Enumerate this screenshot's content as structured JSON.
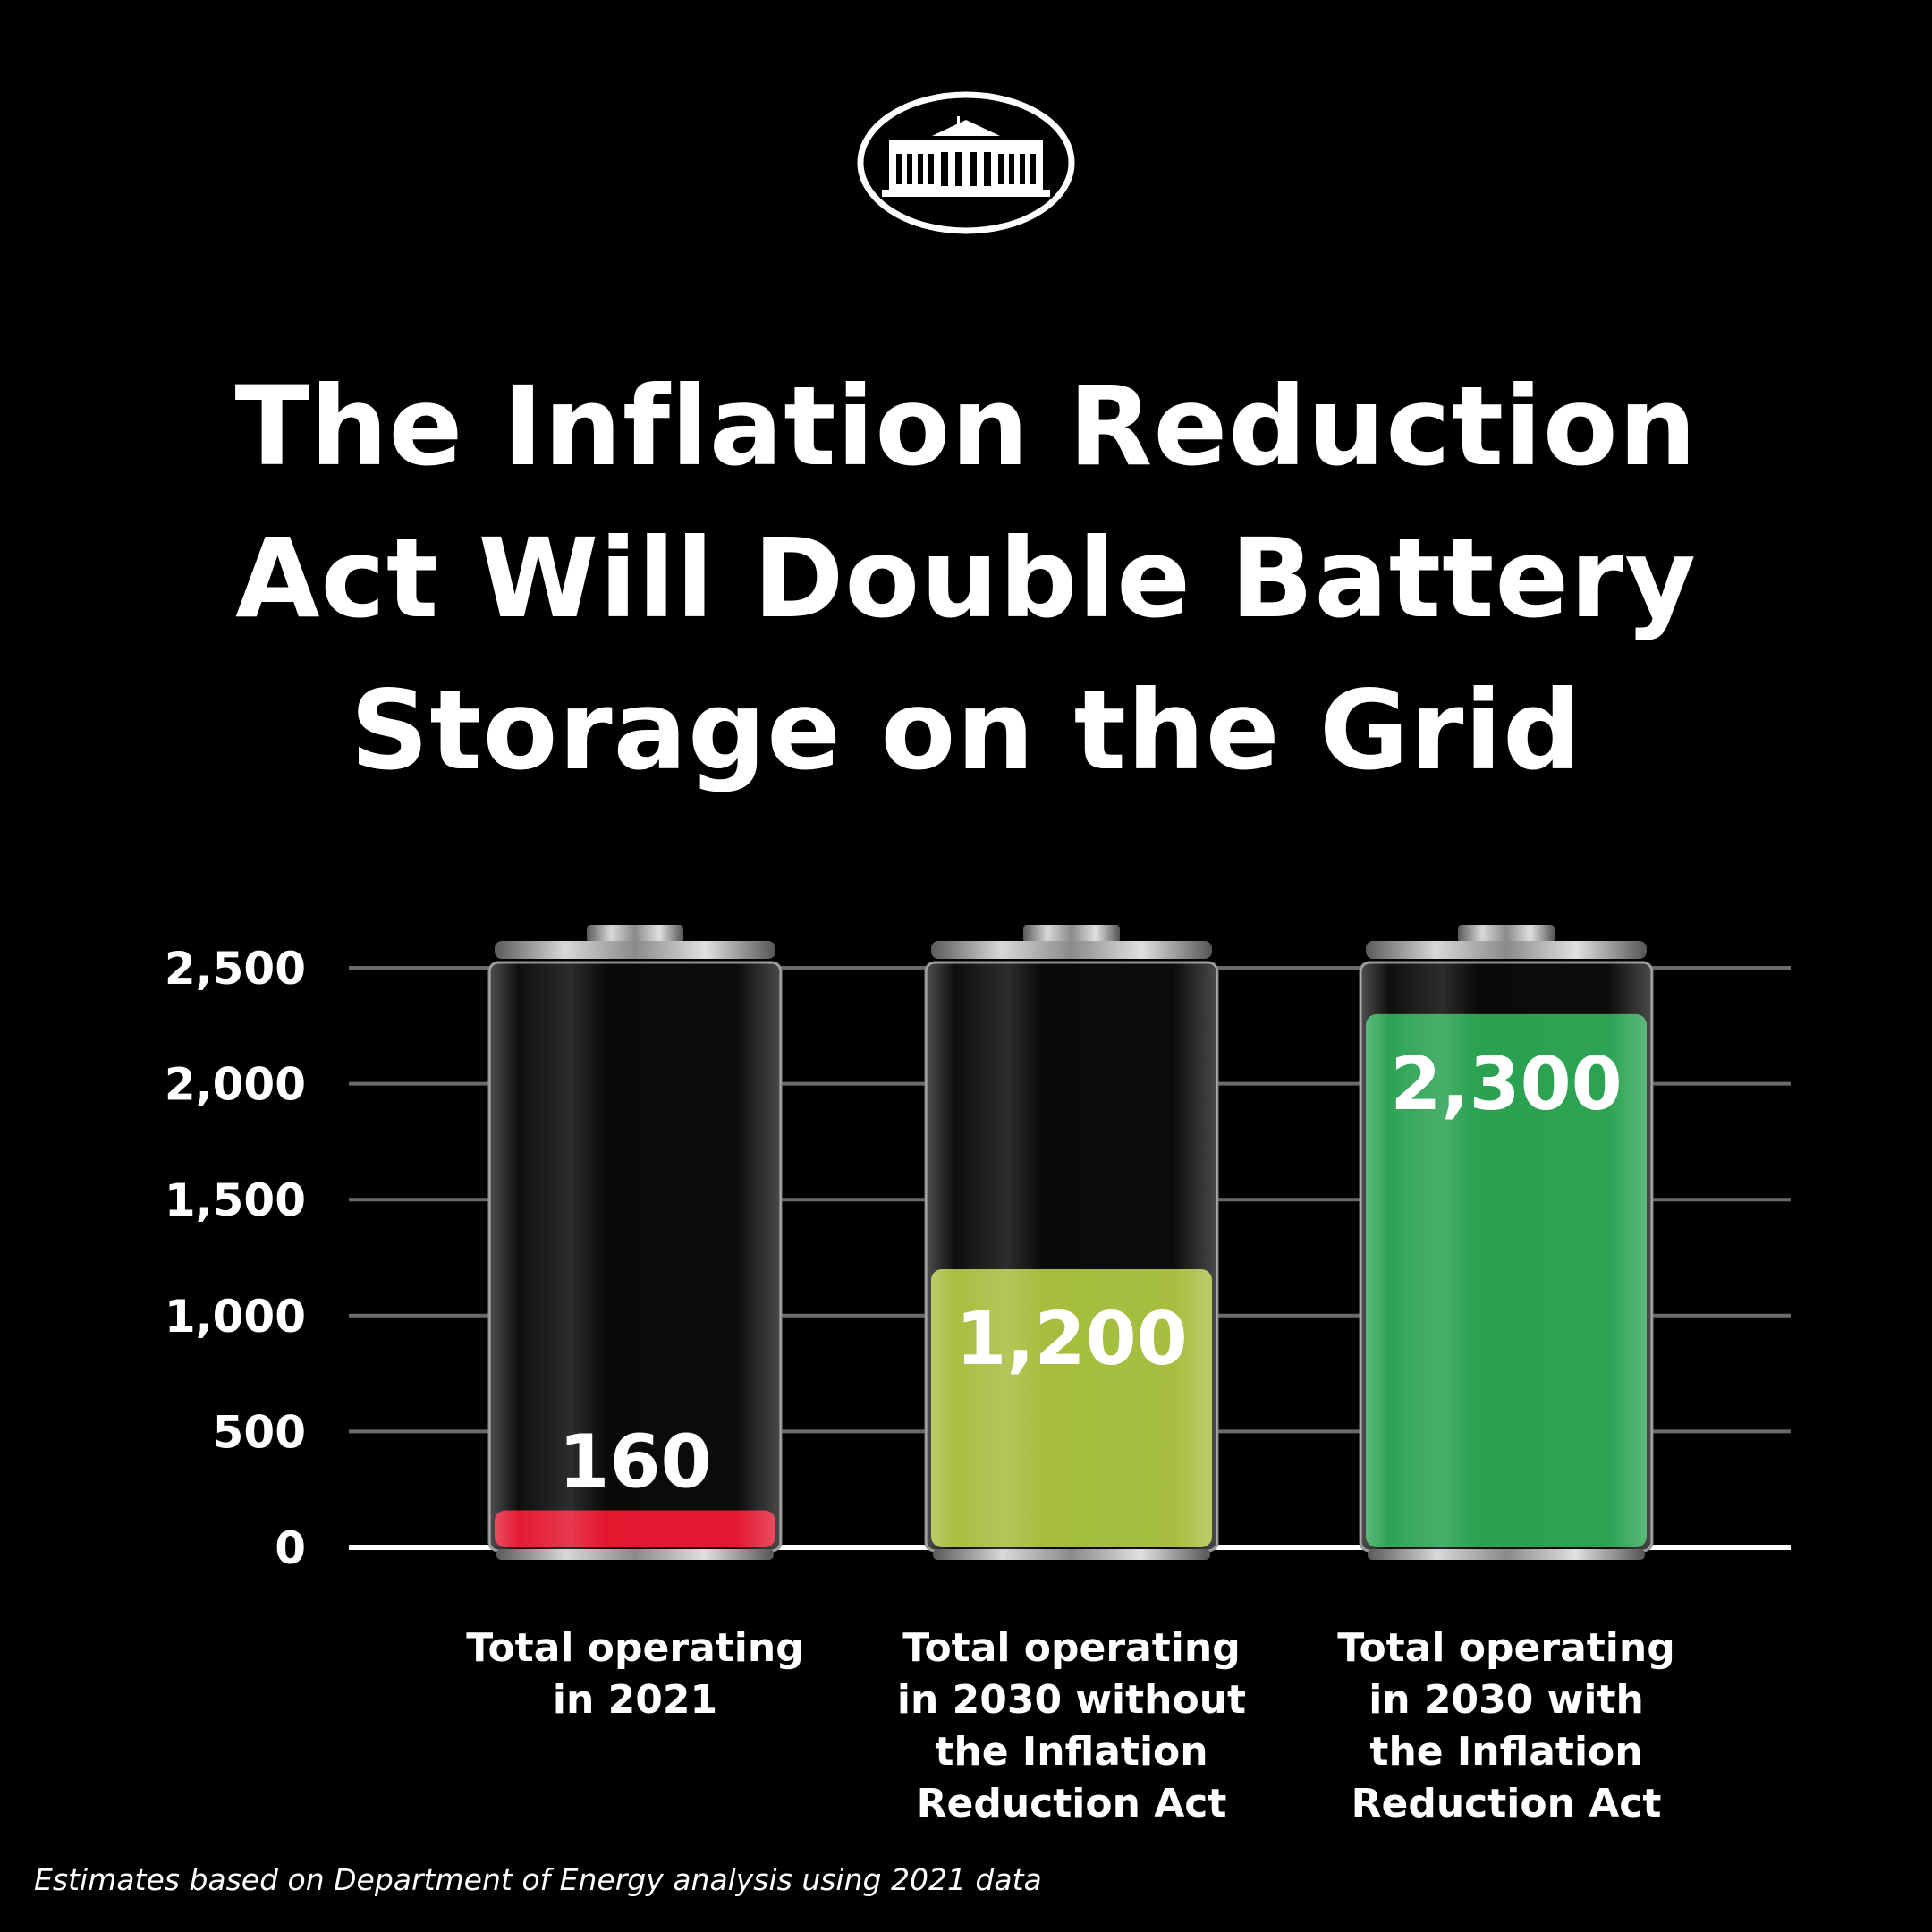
{
  "title_lines": [
    "The Inflation Reduction",
    "Act Will Double Battery",
    "Storage on the Grid"
  ],
  "logo": "white-house-seal",
  "footnote": "Estimates based on Department of Energy analysis using 2021 data",
  "chart_data": {
    "type": "bar",
    "style": "battery-shaped bars",
    "categories": [
      [
        "Total operating",
        "in 2021"
      ],
      [
        "Total operating",
        "in 2030 without",
        "the Inflation",
        "Reduction Act"
      ],
      [
        "Total operating",
        "in 2030 with",
        "the Inflation",
        "Reduction Act"
      ]
    ],
    "values": [
      160,
      1200,
      2300
    ],
    "value_labels": [
      "160",
      "1,200",
      "2,300"
    ],
    "yticks": [
      0,
      500,
      1000,
      1500,
      2000,
      2500
    ],
    "ytick_labels": [
      "0",
      "500",
      "1,000",
      "1,500",
      "2,000",
      "2,500"
    ],
    "ylim": [
      0,
      2500
    ],
    "grid": true,
    "bar_colors": [
      "#e3122b",
      "#a4bc3a",
      "#26a04e"
    ],
    "xlabel": "",
    "ylabel": ""
  }
}
